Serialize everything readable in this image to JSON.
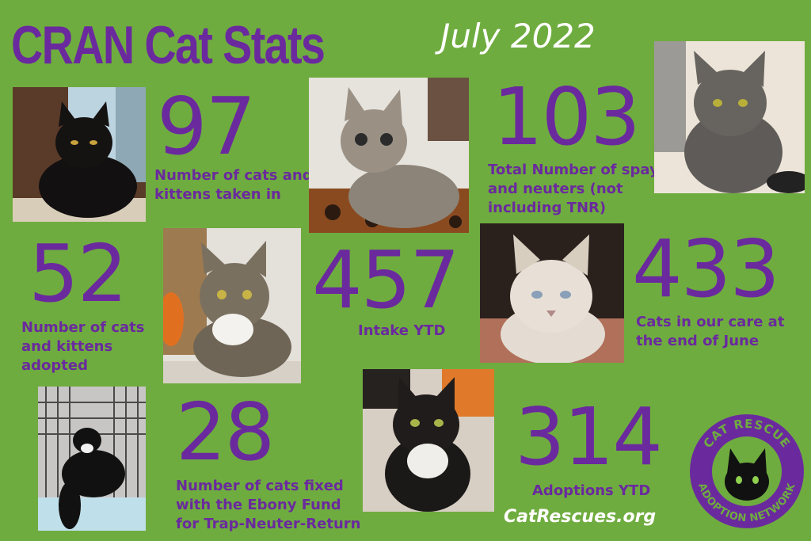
{
  "header": {
    "title": "CRAN Cat Stats",
    "date": "July 2022"
  },
  "stats": [
    {
      "number": "97",
      "label": "Number of cats and kittens taken in"
    },
    {
      "number": "103",
      "label": "Total Number of spays and neuters (not including TNR)"
    },
    {
      "number": "52",
      "label": "Number of cats and kittens adopted"
    },
    {
      "number": "457",
      "label": "Intake YTD"
    },
    {
      "number": "433",
      "label": "Cats in our care at the end of June"
    },
    {
      "number": "28",
      "label": "Number of cats fixed with the Ebony Fund for Trap-Neuter-Return"
    },
    {
      "number": "314",
      "label": "Adoptions YTD"
    }
  ],
  "footer": {
    "website": "CatRescues.org"
  },
  "logo": {
    "top_text": "CAT RESCUE",
    "bottom_text": "ADOPTION NETWORK"
  },
  "colors": {
    "background": "#6fac3f",
    "accent": "#6a2a9e",
    "text_light": "#ffffff"
  },
  "photos": [
    {
      "icon": "black-cat-photo"
    },
    {
      "icon": "tabby-kitten-photo"
    },
    {
      "icon": "gray-longhair-cat-photo"
    },
    {
      "icon": "tabby-white-cat-photo"
    },
    {
      "icon": "siamese-lynx-cat-photo"
    },
    {
      "icon": "tuxedo-cat-in-trap-photo"
    },
    {
      "icon": "black-white-longhair-cat-photo"
    }
  ]
}
